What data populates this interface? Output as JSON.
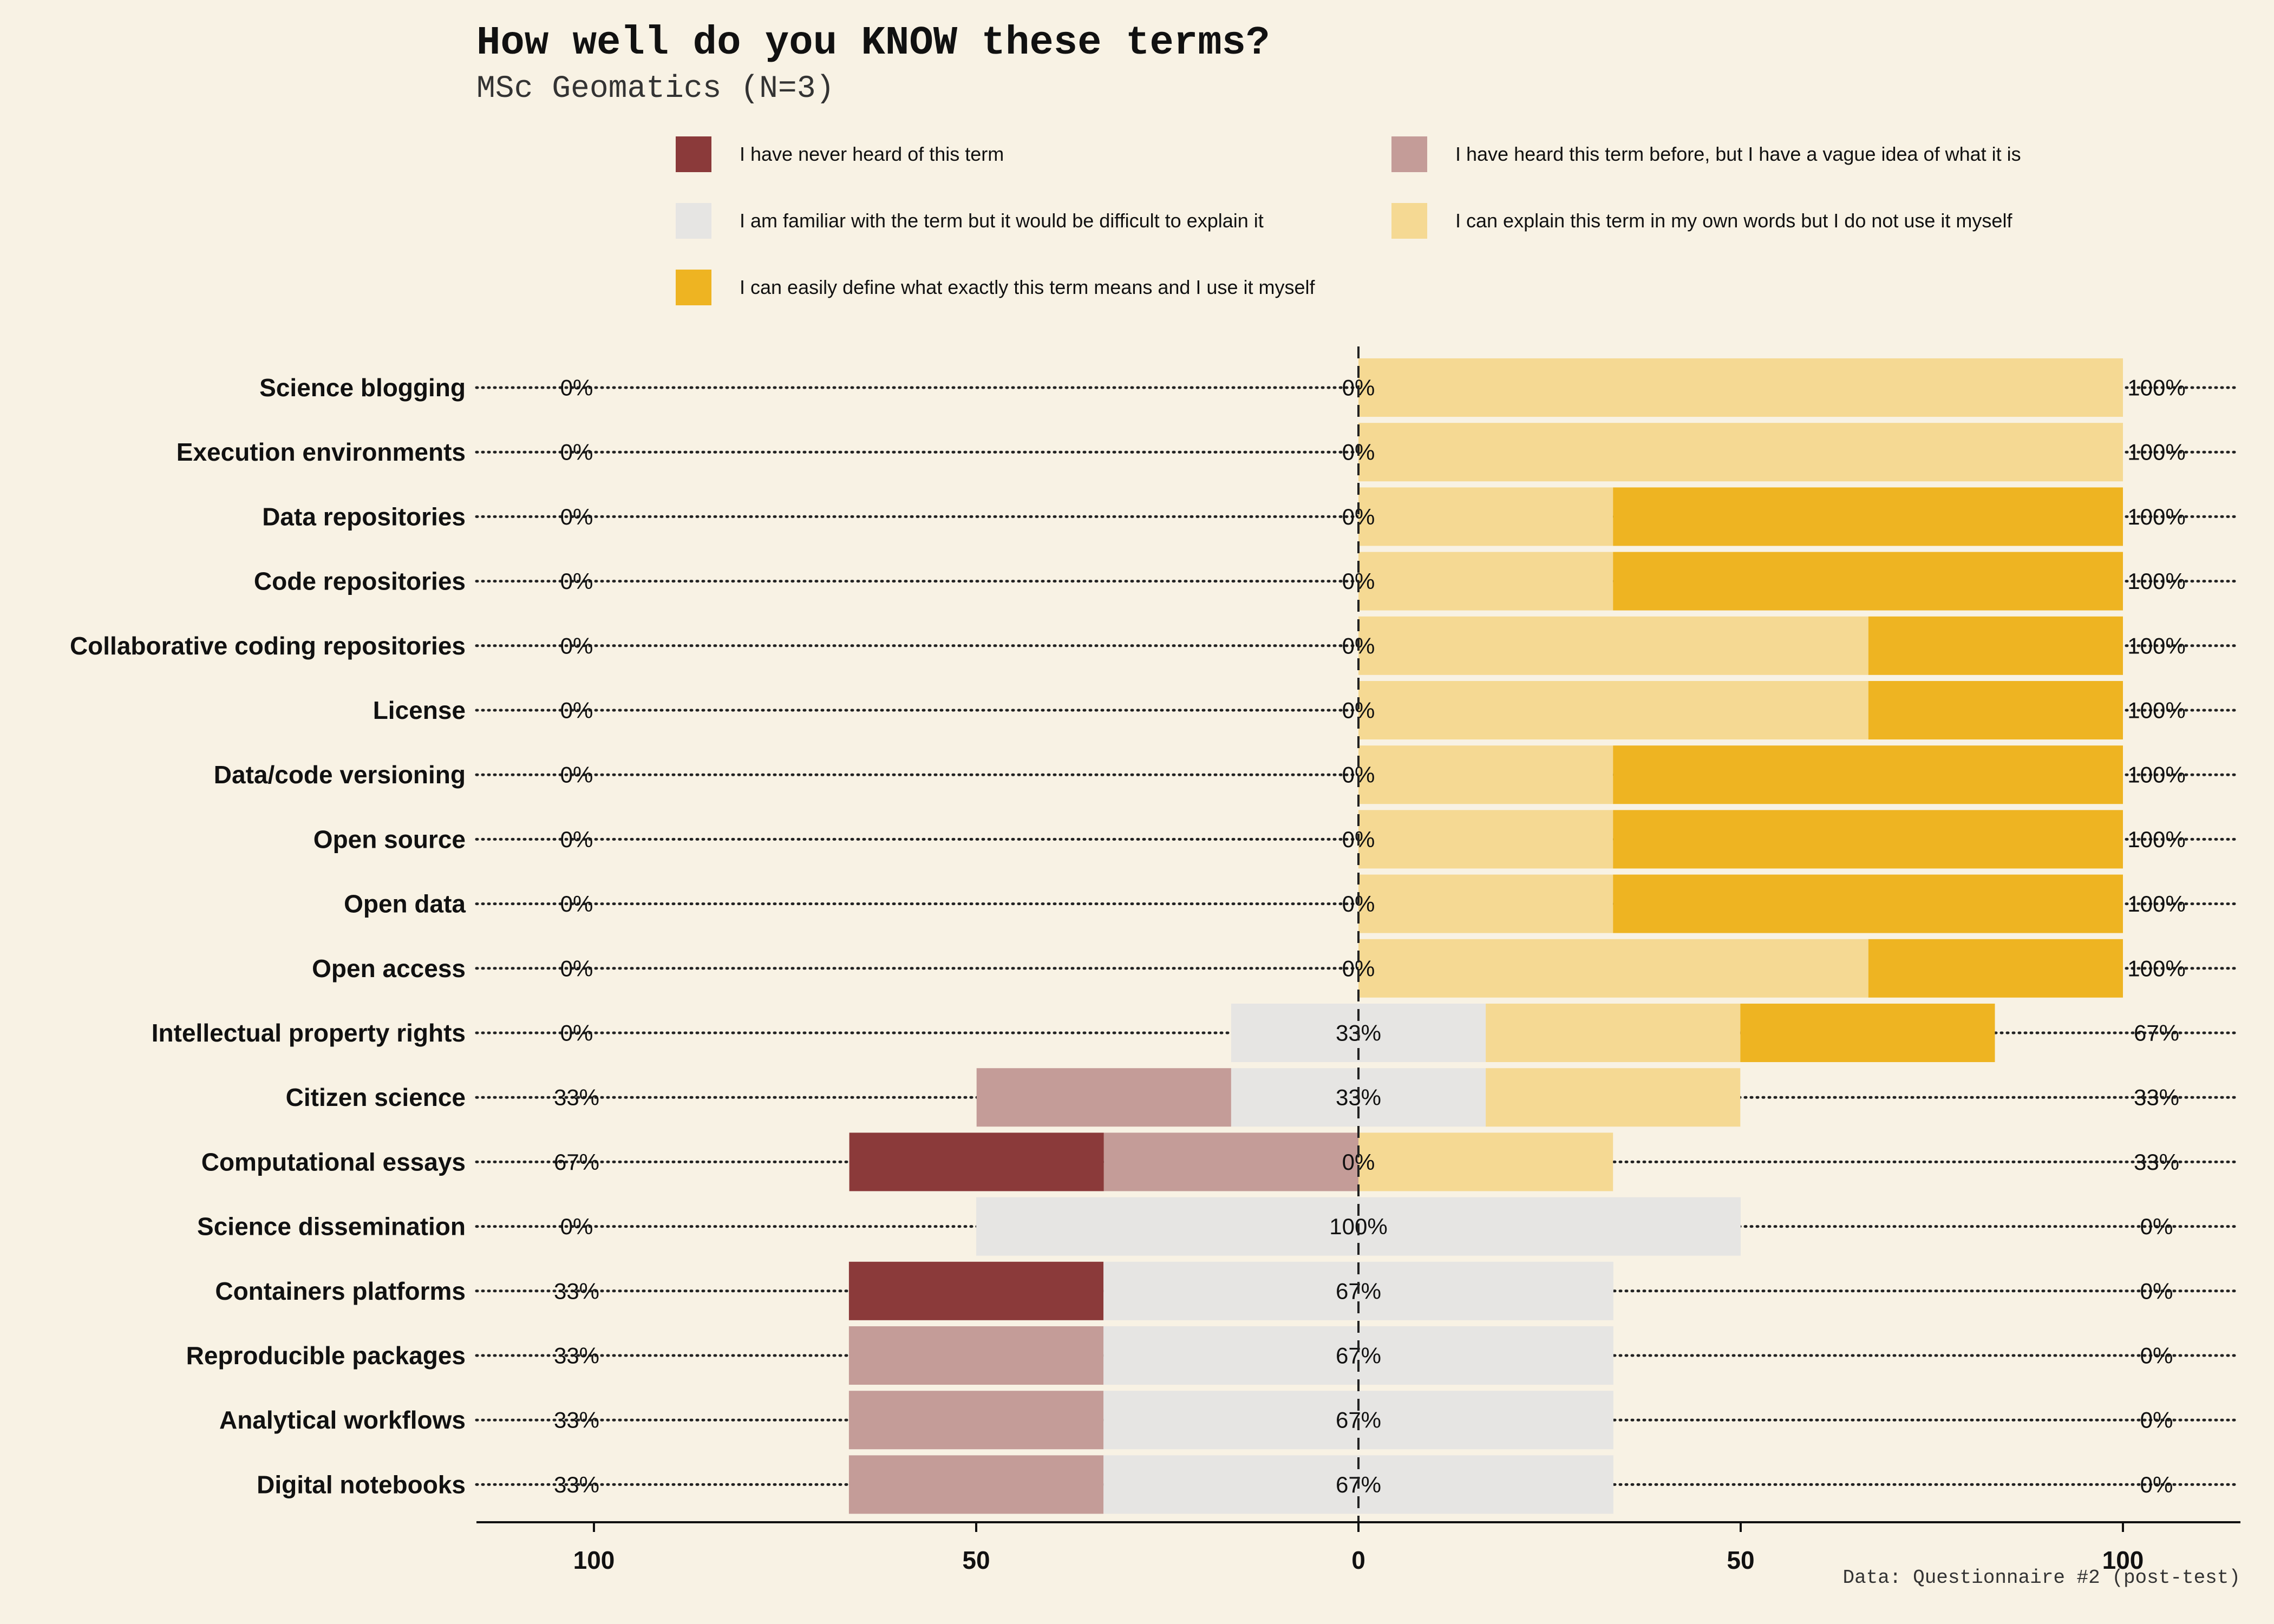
{
  "title": "How well do you KNOW these terms?",
  "subtitle": "MSc Geomatics (N=3)",
  "caption": "Data: Questionnaire #2 (post-test)",
  "colors": {
    "background": "#f8f2e4",
    "never_heard": "#8b3a3a",
    "vague_idea": "#c49c98",
    "familiar": "#e6e5e3",
    "explain": "#f5d993",
    "use_it": "#eeb422"
  },
  "legend": [
    {
      "label": "I have never heard of this term",
      "color": "#8b3a3a"
    },
    {
      "label": "I have heard this term before, but I have a vague idea of what it is",
      "color": "#c49c98"
    },
    {
      "label": "I am familiar with the term but it would be difficult to explain it",
      "color": "#e6e5e3"
    },
    {
      "label": "I can explain this term in my own words but I do not use it myself",
      "color": "#f5d993"
    },
    {
      "label": "I can easily define what exactly this term means and I use it myself",
      "color": "#eeb422"
    }
  ],
  "chart_data": {
    "type": "bar",
    "orientation": "horizontal-diverging",
    "stacked": true,
    "xlim": [
      -100,
      100
    ],
    "x_ticks": [
      -100,
      -50,
      0,
      50,
      100
    ],
    "x_tick_labels": [
      "100",
      "50",
      "0",
      "50",
      "100"
    ],
    "series_names": [
      "I have never heard of this term",
      "I have heard this term before, but I have a vague idea of what it is",
      "I am familiar with the term but it would be difficult to explain it",
      "I can explain this term in my own words but I do not use it myself",
      "I can easily define what exactly this term means and I use it myself"
    ],
    "rows": [
      {
        "term": "Science blogging",
        "values": [
          0,
          0,
          0,
          100,
          0
        ],
        "low": "0%",
        "neutral": "0%",
        "high": "100%"
      },
      {
        "term": "Execution environments",
        "values": [
          0,
          0,
          0,
          100,
          0
        ],
        "low": "0%",
        "neutral": "0%",
        "high": "100%"
      },
      {
        "term": "Data repositories",
        "values": [
          0,
          0,
          0,
          33.3,
          66.7
        ],
        "low": "0%",
        "neutral": "0%",
        "high": "100%"
      },
      {
        "term": "Code repositories",
        "values": [
          0,
          0,
          0,
          33.3,
          66.7
        ],
        "low": "0%",
        "neutral": "0%",
        "high": "100%"
      },
      {
        "term": "Collaborative coding repositories",
        "values": [
          0,
          0,
          0,
          66.7,
          33.3
        ],
        "low": "0%",
        "neutral": "0%",
        "high": "100%"
      },
      {
        "term": "License",
        "values": [
          0,
          0,
          0,
          66.7,
          33.3
        ],
        "low": "0%",
        "neutral": "0%",
        "high": "100%"
      },
      {
        "term": "Data/code versioning",
        "values": [
          0,
          0,
          0,
          33.3,
          66.7
        ],
        "low": "0%",
        "neutral": "0%",
        "high": "100%"
      },
      {
        "term": "Open source",
        "values": [
          0,
          0,
          0,
          33.3,
          66.7
        ],
        "low": "0%",
        "neutral": "0%",
        "high": "100%"
      },
      {
        "term": "Open data",
        "values": [
          0,
          0,
          0,
          33.3,
          66.7
        ],
        "low": "0%",
        "neutral": "0%",
        "high": "100%"
      },
      {
        "term": "Open access",
        "values": [
          0,
          0,
          0,
          66.7,
          33.3
        ],
        "low": "0%",
        "neutral": "0%",
        "high": "100%"
      },
      {
        "term": "Intellectual property rights",
        "values": [
          0,
          0,
          33.3,
          33.3,
          33.3
        ],
        "low": "0%",
        "neutral": "33%",
        "high": "67%"
      },
      {
        "term": "Citizen science",
        "values": [
          0,
          33.3,
          33.3,
          33.3,
          0
        ],
        "low": "33%",
        "neutral": "33%",
        "high": "33%"
      },
      {
        "term": "Computational essays",
        "values": [
          33.3,
          33.3,
          0,
          33.3,
          0
        ],
        "low": "67%",
        "neutral": "0%",
        "high": "33%"
      },
      {
        "term": "Science dissemination",
        "values": [
          0,
          0,
          100,
          0,
          0
        ],
        "low": "0%",
        "neutral": "100%",
        "high": "0%"
      },
      {
        "term": "Containers platforms",
        "values": [
          33.3,
          0,
          66.7,
          0,
          0
        ],
        "low": "33%",
        "neutral": "67%",
        "high": "0%"
      },
      {
        "term": "Reproducible packages",
        "values": [
          0,
          33.3,
          66.7,
          0,
          0
        ],
        "low": "33%",
        "neutral": "67%",
        "high": "0%"
      },
      {
        "term": "Analytical workflows",
        "values": [
          0,
          33.3,
          66.7,
          0,
          0
        ],
        "low": "33%",
        "neutral": "67%",
        "high": "0%"
      },
      {
        "term": "Digital notebooks",
        "values": [
          0,
          33.3,
          66.7,
          0,
          0
        ],
        "low": "33%",
        "neutral": "67%",
        "high": "0%"
      }
    ]
  }
}
